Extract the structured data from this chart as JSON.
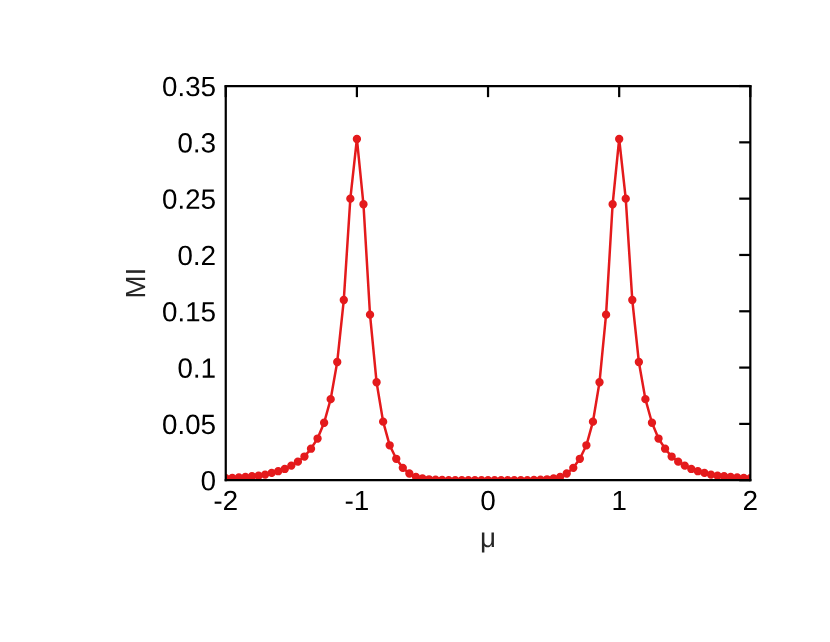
{
  "chart_data": {
    "type": "line",
    "xlabel": "μ",
    "ylabel": "MI",
    "x": [
      -2,
      -1.95,
      -1.9,
      -1.85,
      -1.8,
      -1.75,
      -1.7,
      -1.65,
      -1.6,
      -1.55,
      -1.5,
      -1.45,
      -1.4,
      -1.35,
      -1.3,
      -1.25,
      -1.2,
      -1.15,
      -1.1,
      -1.05,
      -1,
      -0.95,
      -0.9,
      -0.85,
      -0.8,
      -0.75,
      -0.7,
      -0.65,
      -0.6,
      -0.55,
      -0.5,
      -0.45,
      -0.4,
      -0.35,
      -0.3,
      -0.25,
      -0.2,
      -0.15,
      -0.1,
      -0.05,
      0,
      0.05,
      0.1,
      0.15,
      0.2,
      0.25,
      0.3,
      0.35,
      0.4,
      0.45,
      0.5,
      0.55,
      0.6,
      0.65,
      0.7,
      0.75,
      0.8,
      0.85,
      0.9,
      0.95,
      1,
      1.05,
      1.1,
      1.15,
      1.2,
      1.25,
      1.3,
      1.35,
      1.4,
      1.45,
      1.5,
      1.55,
      1.6,
      1.65,
      1.7,
      1.75,
      1.8,
      1.85,
      1.9,
      1.95,
      2
    ],
    "series": [
      {
        "color": "#e41a1c",
        "values": [
          0.0018,
          0.002,
          0.0025,
          0.003,
          0.0035,
          0.004,
          0.005,
          0.0065,
          0.008,
          0.01,
          0.013,
          0.0165,
          0.021,
          0.028,
          0.037,
          0.051,
          0.072,
          0.105,
          0.16,
          0.25,
          0.303,
          0.245,
          0.147,
          0.087,
          0.052,
          0.031,
          0.019,
          0.011,
          0.006,
          0.003,
          0.0015,
          0.0008,
          0.0005,
          0.0003,
          0,
          0,
          0,
          0,
          0,
          0,
          0,
          0,
          0,
          0,
          0,
          0,
          0,
          0.0003,
          0.0005,
          0.0008,
          0.0015,
          0.003,
          0.006,
          0.011,
          0.019,
          0.031,
          0.052,
          0.087,
          0.147,
          0.245,
          0.303,
          0.25,
          0.16,
          0.105,
          0.072,
          0.051,
          0.037,
          0.028,
          0.021,
          0.0165,
          0.013,
          0.01,
          0.008,
          0.0065,
          0.005,
          0.004,
          0.0035,
          0.003,
          0.0025,
          0.002,
          0.0018
        ]
      }
    ],
    "xlim": [
      -2,
      2
    ],
    "xticks": [
      -2,
      -1,
      0,
      1,
      2
    ],
    "ylim": [
      0,
      0.35
    ],
    "yticks": [
      0,
      0.05,
      0.1,
      0.15,
      0.2,
      0.25,
      0.3,
      0.35
    ],
    "grid": false,
    "legend": false,
    "marker": "circle",
    "line_style": "solid"
  }
}
